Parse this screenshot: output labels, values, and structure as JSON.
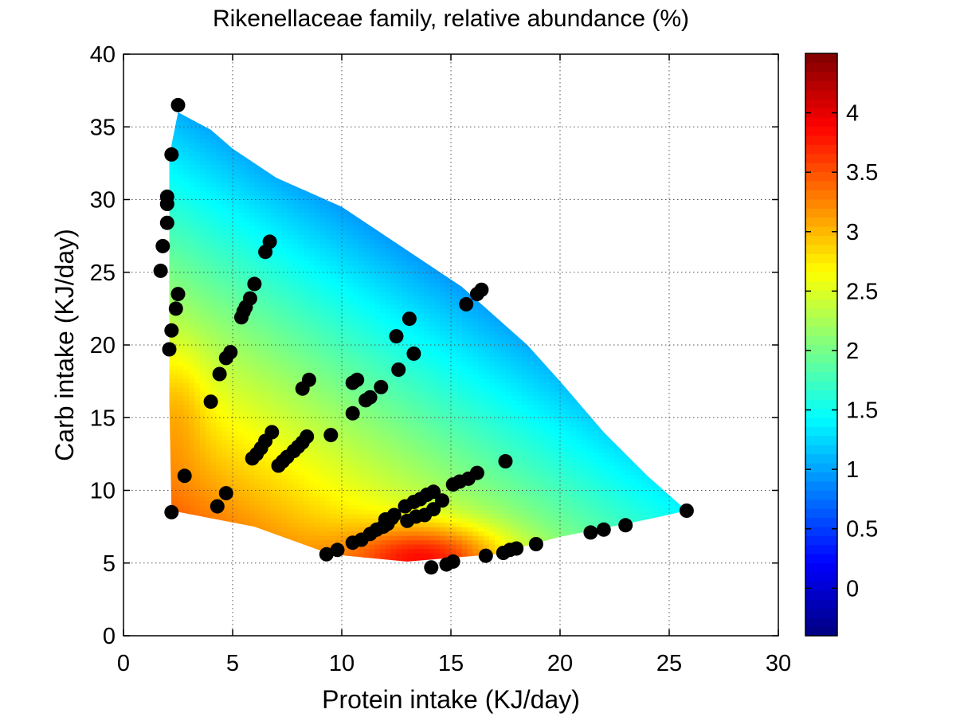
{
  "chart_data": {
    "type": "heatmap",
    "title": "Rikenellaceae family, relative abundance (%)",
    "xlabel": "Protein intake (KJ/day)",
    "ylabel": "Carb intake (KJ/day)",
    "xlim": [
      0,
      30
    ],
    "ylim": [
      0,
      40
    ],
    "x_ticks": [
      "0",
      "5",
      "10",
      "15",
      "20",
      "25",
      "30"
    ],
    "y_ticks": [
      "0",
      "5",
      "10",
      "15",
      "20",
      "25",
      "30",
      "35",
      "40"
    ],
    "grid": true,
    "colormap": "jet",
    "colorbar": {
      "range": [
        -0.4,
        4.5
      ],
      "ticks": [
        "0",
        "0.5",
        "1",
        "1.5",
        "2",
        "2.5",
        "3",
        "3.5",
        "4"
      ]
    },
    "surface_boundary": [
      [
        2.5,
        36
      ],
      [
        4,
        34.8
      ],
      [
        5,
        33.5
      ],
      [
        7,
        31.5
      ],
      [
        10,
        29.5
      ],
      [
        13,
        26.5
      ],
      [
        15.5,
        24
      ],
      [
        17,
        22
      ],
      [
        18.5,
        20
      ],
      [
        20,
        17.5
      ],
      [
        22,
        14
      ],
      [
        24,
        11
      ],
      [
        25.8,
        8.6
      ],
      [
        24,
        8
      ],
      [
        20,
        6.8
      ],
      [
        17,
        5.6
      ],
      [
        13,
        5.1
      ],
      [
        9.5,
        5.6
      ],
      [
        6,
        7.5
      ],
      [
        2.2,
        8.6
      ],
      [
        2.1,
        16.2
      ],
      [
        2.1,
        33
      ],
      [
        2.5,
        36
      ]
    ],
    "points_marker_color": "#000000",
    "points": [
      [
        2.5,
        36.5
      ],
      [
        2.2,
        33.1
      ],
      [
        2.0,
        30.2
      ],
      [
        2.0,
        29.7
      ],
      [
        2.0,
        28.4
      ],
      [
        1.8,
        26.8
      ],
      [
        1.7,
        25.1
      ],
      [
        2.5,
        23.5
      ],
      [
        2.4,
        22.5
      ],
      [
        2.2,
        21.0
      ],
      [
        2.1,
        19.7
      ],
      [
        2.2,
        8.5
      ],
      [
        2.8,
        11.0
      ],
      [
        4.0,
        16.1
      ],
      [
        4.4,
        18.0
      ],
      [
        4.7,
        19.1
      ],
      [
        4.9,
        19.5
      ],
      [
        4.3,
        8.9
      ],
      [
        4.7,
        9.8
      ],
      [
        5.4,
        21.9
      ],
      [
        5.5,
        22.3
      ],
      [
        5.6,
        22.6
      ],
      [
        5.8,
        23.2
      ],
      [
        6.0,
        24.2
      ],
      [
        6.5,
        26.4
      ],
      [
        6.7,
        27.1
      ],
      [
        5.9,
        12.2
      ],
      [
        6.1,
        12.5
      ],
      [
        6.3,
        12.9
      ],
      [
        6.5,
        13.4
      ],
      [
        6.8,
        14.0
      ],
      [
        7.1,
        11.7
      ],
      [
        7.3,
        12.0
      ],
      [
        7.5,
        12.3
      ],
      [
        7.8,
        12.7
      ],
      [
        8.0,
        13.0
      ],
      [
        8.2,
        13.3
      ],
      [
        8.4,
        13.7
      ],
      [
        8.2,
        17.0
      ],
      [
        8.5,
        17.6
      ],
      [
        9.5,
        13.8
      ],
      [
        9.3,
        5.6
      ],
      [
        9.8,
        5.9
      ],
      [
        10.5,
        15.3
      ],
      [
        10.5,
        17.4
      ],
      [
        10.7,
        17.6
      ],
      [
        11.1,
        16.2
      ],
      [
        11.3,
        16.4
      ],
      [
        11.8,
        17.1
      ],
      [
        10.5,
        6.4
      ],
      [
        10.9,
        6.6
      ],
      [
        11.3,
        7.0
      ],
      [
        11.6,
        7.3
      ],
      [
        11.9,
        7.5
      ],
      [
        12.1,
        7.7
      ],
      [
        12.3,
        8.1
      ],
      [
        12.4,
        8.3
      ],
      [
        12.0,
        8.0
      ],
      [
        12.5,
        20.6
      ],
      [
        12.6,
        18.3
      ],
      [
        13.1,
        21.8
      ],
      [
        13.3,
        19.4
      ],
      [
        12.9,
        8.9
      ],
      [
        13.3,
        9.2
      ],
      [
        13.6,
        9.4
      ],
      [
        13.9,
        9.7
      ],
      [
        14.2,
        9.9
      ],
      [
        13.0,
        7.9
      ],
      [
        13.4,
        8.2
      ],
      [
        13.8,
        8.3
      ],
      [
        14.2,
        8.7
      ],
      [
        14.6,
        9.3
      ],
      [
        15.1,
        10.4
      ],
      [
        15.4,
        10.6
      ],
      [
        15.8,
        10.8
      ],
      [
        16.2,
        11.2
      ],
      [
        15.7,
        22.8
      ],
      [
        16.2,
        23.5
      ],
      [
        16.4,
        23.8
      ],
      [
        14.1,
        4.7
      ],
      [
        14.8,
        4.9
      ],
      [
        15.1,
        5.1
      ],
      [
        16.6,
        5.5
      ],
      [
        17.4,
        5.7
      ],
      [
        17.7,
        5.9
      ],
      [
        18.0,
        6.0
      ],
      [
        18.9,
        6.3
      ],
      [
        17.5,
        12.0
      ],
      [
        21.4,
        7.1
      ],
      [
        22.0,
        7.3
      ],
      [
        23.0,
        7.6
      ],
      [
        25.8,
        8.6
      ]
    ]
  }
}
